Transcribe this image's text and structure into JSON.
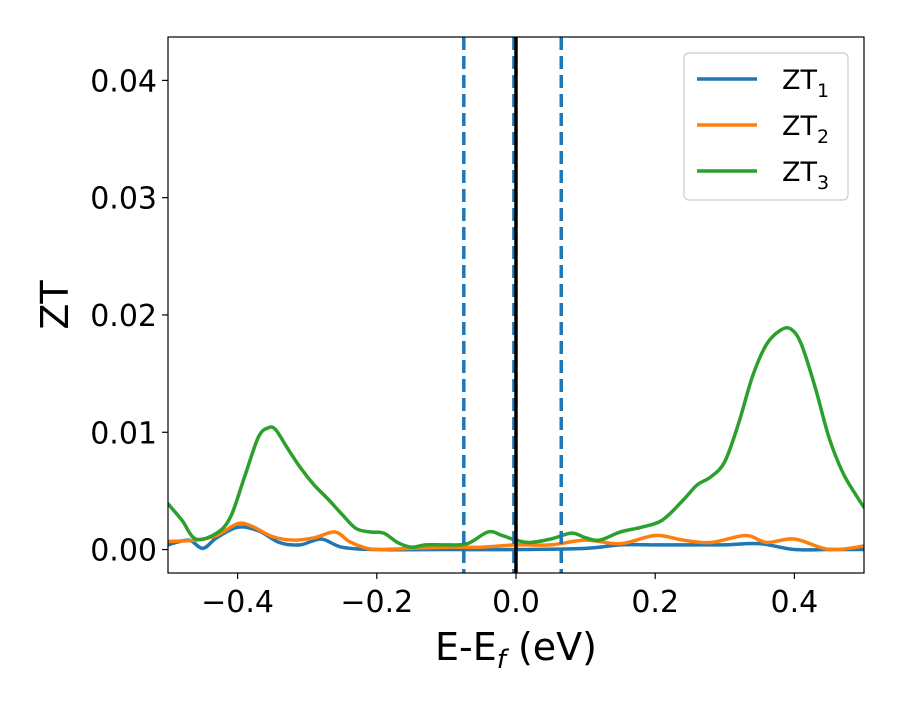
{
  "chart_data": {
    "type": "line",
    "xlabel_main": "E-E",
    "xlabel_sub": "f",
    "xlabel_unit": " (eV)",
    "ylabel": "ZT",
    "xlim": [
      -0.5,
      0.5
    ],
    "ylim": [
      -0.002,
      0.0437
    ],
    "xticks": [
      -0.4,
      -0.2,
      0.0,
      0.2,
      0.4
    ],
    "xtick_labels": [
      "−0.4",
      "−0.2",
      "0.0",
      "0.2",
      "0.4"
    ],
    "yticks": [
      0.0,
      0.01,
      0.02,
      0.03,
      0.04
    ],
    "ytick_labels": [
      "0.00",
      "0.01",
      "0.02",
      "0.03",
      "0.04"
    ],
    "grid": false,
    "legend_position": "top-right",
    "vertical_lines": [
      {
        "x": -0.075,
        "style": "dashed",
        "color": "#1f77b4"
      },
      {
        "x": -0.003,
        "style": "dashed",
        "color": "#1f77b4"
      },
      {
        "x": 0.065,
        "style": "dashed",
        "color": "#1f77b4"
      },
      {
        "x": 0.0,
        "style": "solid",
        "color": "#000000"
      }
    ],
    "series": [
      {
        "name": "ZT",
        "subscript": "1",
        "color": "#1f77b4",
        "x": [
          -0.5,
          -0.47,
          -0.45,
          -0.43,
          -0.4,
          -0.37,
          -0.34,
          -0.31,
          -0.28,
          -0.25,
          -0.2,
          -0.1,
          0.0,
          0.1,
          0.15,
          0.2,
          0.25,
          0.3,
          0.35,
          0.4,
          0.45,
          0.5
        ],
        "y": [
          0.0004,
          0.0008,
          0.0001,
          0.001,
          0.0019,
          0.0016,
          0.0006,
          0.0004,
          0.0009,
          0.0002,
          0.0,
          0.0,
          0.0,
          0.0001,
          0.0004,
          0.0004,
          0.0004,
          0.0004,
          0.0005,
          0.0,
          0.0,
          0.0
        ]
      },
      {
        "name": "ZT",
        "subscript": "2",
        "color": "#ff7f0e",
        "x": [
          -0.5,
          -0.46,
          -0.43,
          -0.4,
          -0.38,
          -0.35,
          -0.32,
          -0.29,
          -0.26,
          -0.24,
          -0.22,
          -0.2,
          -0.15,
          -0.1,
          -0.05,
          0.0,
          0.05,
          0.1,
          0.15,
          0.2,
          0.24,
          0.28,
          0.33,
          0.36,
          0.4,
          0.45,
          0.5
        ],
        "y": [
          0.0007,
          0.0008,
          0.0012,
          0.0022,
          0.002,
          0.0011,
          0.0008,
          0.001,
          0.0015,
          0.0007,
          0.0002,
          0.0,
          0.0001,
          0.0002,
          0.0002,
          0.0004,
          0.0004,
          0.0008,
          0.0005,
          0.0012,
          0.0008,
          0.0006,
          0.0012,
          0.0006,
          0.0009,
          0.0,
          0.0003
        ]
      },
      {
        "name": "ZT",
        "subscript": "3",
        "color": "#2ca02c",
        "x": [
          -0.5,
          -0.48,
          -0.46,
          -0.43,
          -0.41,
          -0.39,
          -0.37,
          -0.355,
          -0.345,
          -0.33,
          -0.31,
          -0.29,
          -0.27,
          -0.25,
          -0.23,
          -0.21,
          -0.19,
          -0.17,
          -0.15,
          -0.13,
          -0.1,
          -0.07,
          -0.04,
          -0.02,
          0.0,
          0.02,
          0.05,
          0.08,
          0.1,
          0.12,
          0.15,
          0.18,
          0.21,
          0.24,
          0.26,
          0.28,
          0.3,
          0.32,
          0.34,
          0.36,
          0.38,
          0.395,
          0.41,
          0.43,
          0.45,
          0.47,
          0.49,
          0.5
        ],
        "y": [
          0.0039,
          0.0025,
          0.0009,
          0.0014,
          0.0028,
          0.0062,
          0.0096,
          0.0104,
          0.0102,
          0.0088,
          0.007,
          0.0055,
          0.0043,
          0.003,
          0.0018,
          0.0015,
          0.0014,
          0.0006,
          0.0002,
          0.0004,
          0.0004,
          0.0005,
          0.0015,
          0.0012,
          0.0008,
          0.0006,
          0.0009,
          0.0014,
          0.001,
          0.0008,
          0.0015,
          0.0019,
          0.0025,
          0.0042,
          0.0055,
          0.0062,
          0.0075,
          0.0108,
          0.0148,
          0.0175,
          0.0187,
          0.0188,
          0.0175,
          0.0138,
          0.0095,
          0.0065,
          0.0045,
          0.0036
        ]
      }
    ]
  }
}
